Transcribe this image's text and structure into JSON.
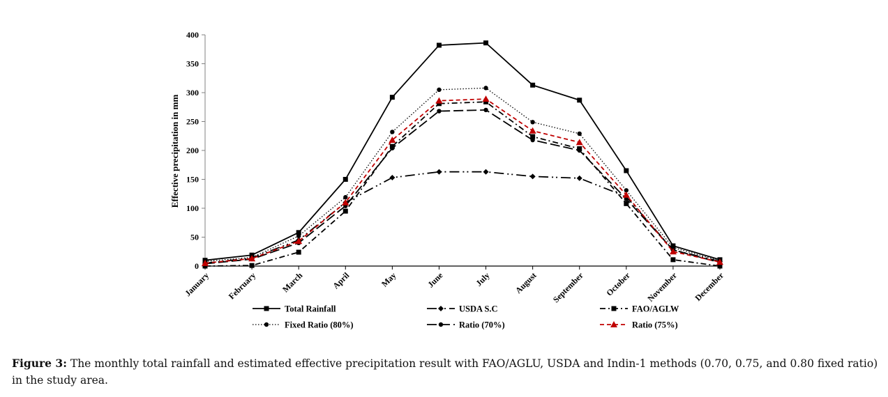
{
  "chart_data": {
    "type": "line",
    "title": "",
    "xlabel": "",
    "ylabel": "Effective precipitation  in mm",
    "ylim": [
      0,
      400
    ],
    "yticks": [
      0,
      50,
      100,
      150,
      200,
      250,
      300,
      350,
      400
    ],
    "grid": false,
    "legend_position": "bottom",
    "categories": [
      "January",
      "February",
      "March",
      "April",
      "May",
      "June",
      "July",
      "August",
      "September",
      "October",
      "November",
      "December"
    ],
    "series": [
      {
        "name": "Total Rainfall",
        "color": "#000000",
        "style": "solid",
        "marker": "square",
        "values": [
          10,
          19,
          58,
          150,
          292,
          382,
          386,
          313,
          287,
          165,
          35,
          11
        ]
      },
      {
        "name": "USDA S.C",
        "color": "#000000",
        "style": "long-dash-dot-dot",
        "marker": "diamond",
        "values": [
          5,
          14,
          45,
          110,
          153,
          163,
          163,
          155,
          152,
          120,
          28,
          8
        ]
      },
      {
        "name": "FAO/AGLW",
        "color": "#000000",
        "style": "dash-dot",
        "marker": "square",
        "values": [
          0,
          1,
          24,
          95,
          207,
          281,
          284,
          224,
          203,
          108,
          11,
          0
        ]
      },
      {
        "name": "Fixed Ratio (80%)",
        "color": "#000000",
        "style": "dotted",
        "marker": "circle",
        "values": [
          8,
          15,
          52,
          119,
          232,
          305,
          308,
          249,
          229,
          131,
          32,
          9
        ]
      },
      {
        "name": "Ratio (70%)",
        "color": "#000000",
        "style": "long-dash",
        "marker": "circle",
        "values": [
          4,
          12,
          40,
          104,
          204,
          268,
          270,
          218,
          200,
          116,
          28,
          6
        ]
      },
      {
        "name": "Ratio (75%)",
        "color": "#c00000",
        "style": "dashed",
        "marker": "triangle",
        "values": [
          5,
          13,
          43,
          110,
          218,
          286,
          289,
          234,
          214,
          123,
          25,
          7
        ]
      }
    ]
  },
  "caption": {
    "label": "Figure 3:",
    "text": " The monthly total rainfall and estimated effective precipitation result with FAO/AGLU, USDA and Indin-1 methods (0.70, 0.75, and 0.80 fixed ratio) in the study area."
  }
}
